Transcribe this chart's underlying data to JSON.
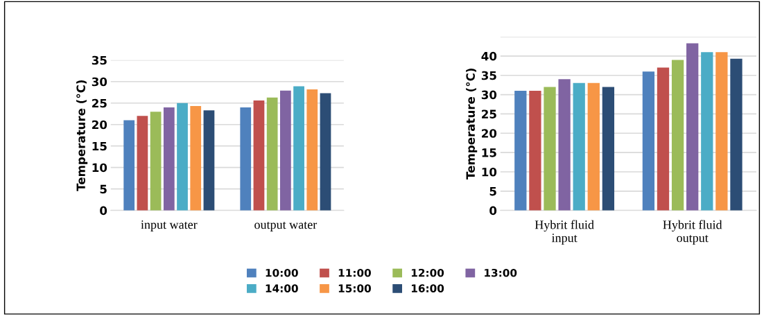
{
  "chart_data": [
    {
      "type": "bar",
      "ylabel": "Temperature (°C)",
      "categories": [
        "input water",
        "output water"
      ],
      "ylim": [
        0,
        35
      ],
      "yticks": [
        0,
        5,
        10,
        15,
        20,
        25,
        30,
        35
      ],
      "grid": "y",
      "series": [
        {
          "color": "#4f81bd",
          "values": [
            21,
            24
          ]
        },
        {
          "color": "#c0504d",
          "values": [
            22,
            25.6
          ]
        },
        {
          "color": "#9bbb59",
          "values": [
            23,
            26.3
          ]
        },
        {
          "color": "#8064a2",
          "values": [
            24,
            27.9
          ]
        },
        {
          "color": "#4bacc6",
          "values": [
            25,
            28.9
          ]
        },
        {
          "color": "#f79646",
          "values": [
            24.3,
            28.2
          ]
        },
        {
          "color": "#2c4d75",
          "values": [
            23.3,
            27.3
          ]
        }
      ]
    },
    {
      "type": "bar",
      "ylabel": "Temperature (°C)",
      "categories": [
        "Hybrit fluid\ninput",
        "Hybrit fluid\noutput"
      ],
      "ylim": [
        0,
        45
      ],
      "yticks": [
        0,
        5,
        10,
        15,
        20,
        25,
        30,
        35,
        40,
        {
          "value": 45,
          "label": null
        }
      ],
      "grid": "y",
      "legend": "bottom",
      "series": [
        {
          "name": "10:00",
          "color": "#4f81bd",
          "values": [
            31,
            36
          ]
        },
        {
          "name": "11:00",
          "color": "#c0504d",
          "values": [
            31,
            37
          ]
        },
        {
          "name": "12:00",
          "color": "#9bbb59",
          "values": [
            32,
            39
          ]
        },
        {
          "name": "13:00",
          "color": "#8064a2",
          "values": [
            34,
            43.3
          ]
        },
        {
          "name": "14:00",
          "color": "#4bacc6",
          "values": [
            33,
            41
          ]
        },
        {
          "name": "15:00",
          "color": "#f79646",
          "values": [
            33,
            41
          ]
        },
        {
          "name": "16:00",
          "color": "#2c4d75",
          "values": [
            32,
            39.3
          ]
        }
      ]
    }
  ]
}
